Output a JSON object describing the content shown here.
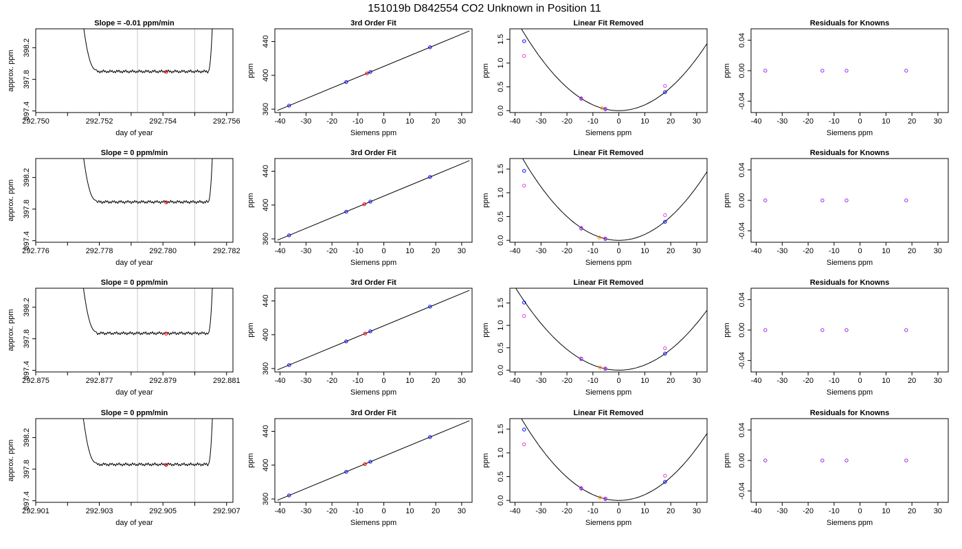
{
  "figure": {
    "title": "151019b     D842554   CO2 Unknown in Position  11",
    "colors": {
      "line": "#000000",
      "vline": "#c8c8c8",
      "blue": "#0000ff",
      "red": "#ff0000",
      "orange": "#ff8c00",
      "purple": "#a020f0",
      "magenta": "#e040e0"
    }
  },
  "chart_data": [
    {
      "id": "r1-trace",
      "type": "line",
      "title": "Slope =  -0.01  ppm/min",
      "xlabel": "day of year",
      "ylabel": "approx. ppm",
      "xlim": [
        292.75,
        292.7562
      ],
      "ylim": [
        397.38,
        398.44
      ],
      "xticks": [
        292.75,
        292.751,
        292.752,
        292.753,
        292.754,
        292.755,
        292.756
      ],
      "xtick_labels": [
        "292.750",
        "",
        "292.752",
        "",
        "292.754",
        "",
        "292.756"
      ],
      "yticks": [
        397.4,
        397.8,
        398.2
      ],
      "ytick_labels": [
        "397.4",
        "397.8",
        "398.2"
      ],
      "vlines": [
        292.7532,
        292.755
      ],
      "trace_start": 292.7514,
      "trace_end": 292.7556,
      "plateau": 397.9,
      "points": [
        {
          "x": 292.7541,
          "y": 397.895,
          "color": "red"
        }
      ]
    },
    {
      "id": "r1-fit",
      "type": "line",
      "title": "3rd Order Fit",
      "xlabel": "Siemens ppm",
      "ylabel": "ppm",
      "xlim": [
        -42,
        34
      ],
      "ylim": [
        356,
        455
      ],
      "xticks": [
        -40,
        -30,
        -20,
        -10,
        0,
        10,
        20,
        30
      ],
      "xtick_labels": [
        "-40",
        "-30",
        "-20",
        "-10",
        "0",
        "10",
        "20",
        "30"
      ],
      "yticks": [
        360,
        400,
        440
      ],
      "ytick_labels": [
        "360",
        "400",
        "440"
      ],
      "fit_line": [
        [
          -41,
          358.5
        ],
        [
          33,
          452.5
        ]
      ],
      "points": [
        {
          "x": -36.5,
          "y": 364.2,
          "color": "blue"
        },
        {
          "x": -14.5,
          "y": 392.1,
          "color": "blue"
        },
        {
          "x": -6.5,
          "y": 402.3,
          "color": "red"
        },
        {
          "x": -5.2,
          "y": 404.0,
          "color": "blue"
        },
        {
          "x": 17.8,
          "y": 433.2,
          "color": "blue"
        }
      ]
    },
    {
      "id": "r1-lin",
      "type": "scatter",
      "title": "Linear Fit Removed",
      "xlabel": "Siemens ppm",
      "ylabel": "ppm",
      "xlim": [
        -42,
        34
      ],
      "ylim": [
        -0.04,
        1.72
      ],
      "xticks": [
        -40,
        -30,
        -20,
        -10,
        0,
        10,
        20,
        30
      ],
      "xtick_labels": [
        "-40",
        "-30",
        "-20",
        "-10",
        "0",
        "10",
        "20",
        "30"
      ],
      "yticks": [
        0,
        0.5,
        1,
        1.5
      ],
      "ytick_labels": [
        "0.0",
        "0.5",
        "1.0",
        "1.5"
      ],
      "curve_coef": 0.00122,
      "points": [
        {
          "x": -36.5,
          "y": 1.46,
          "color": "blue"
        },
        {
          "x": -36.5,
          "y": 1.15,
          "color": "magenta"
        },
        {
          "x": -14.5,
          "y": 0.25,
          "color": "blue"
        },
        {
          "x": -14.5,
          "y": 0.26,
          "color": "magenta"
        },
        {
          "x": -6.5,
          "y": 0.05,
          "color": "orange"
        },
        {
          "x": -5.2,
          "y": 0.03,
          "color": "blue"
        },
        {
          "x": -5.2,
          "y": 0.04,
          "color": "magenta"
        },
        {
          "x": 17.8,
          "y": 0.39,
          "color": "blue"
        },
        {
          "x": 17.8,
          "y": 0.52,
          "color": "magenta"
        }
      ]
    },
    {
      "id": "r1-res",
      "type": "scatter",
      "title": "Residuals for Knowns",
      "xlabel": "Siemens ppm",
      "ylabel": "ppm",
      "xlim": [
        -42,
        34
      ],
      "ylim": [
        -0.055,
        0.055
      ],
      "xticks": [
        -40,
        -30,
        -20,
        -10,
        0,
        10,
        20,
        30
      ],
      "xtick_labels": [
        "-40",
        "-30",
        "-20",
        "-10",
        "0",
        "10",
        "20",
        "30"
      ],
      "yticks": [
        -0.04,
        0,
        0.04
      ],
      "ytick_labels": [
        "-0.04",
        "0.00",
        "0.04"
      ],
      "points": [
        {
          "x": -36.5,
          "y": 0,
          "color": "purple"
        },
        {
          "x": -14.5,
          "y": 0,
          "color": "purple"
        },
        {
          "x": -5.2,
          "y": 0,
          "color": "purple"
        },
        {
          "x": 17.8,
          "y": 0,
          "color": "purple"
        }
      ]
    },
    {
      "id": "r2-trace",
      "type": "line",
      "title": "Slope =  0  ppm/min",
      "xlabel": "day of year",
      "ylabel": "approx. ppm",
      "xlim": [
        292.776,
        292.7822
      ],
      "ylim": [
        397.38,
        398.44
      ],
      "xticks": [
        292.776,
        292.777,
        292.778,
        292.779,
        292.78,
        292.781,
        292.782
      ],
      "xtick_labels": [
        "292.776",
        "",
        "292.778",
        "",
        "292.780",
        "",
        "292.782"
      ],
      "yticks": [
        397.4,
        397.8,
        398.2
      ],
      "ytick_labels": [
        "397.4",
        "397.8",
        "398.2"
      ],
      "vlines": [
        292.7792,
        292.781
      ],
      "trace_start": 292.7774,
      "trace_end": 292.7816,
      "plateau": 397.89,
      "points": [
        {
          "x": 292.7801,
          "y": 397.885,
          "color": "red"
        }
      ]
    },
    {
      "id": "r2-fit",
      "type": "line",
      "title": "3rd Order Fit",
      "xlabel": "Siemens ppm",
      "ylabel": "ppm",
      "xlim": [
        -42,
        34
      ],
      "ylim": [
        356,
        455
      ],
      "xticks": [
        -40,
        -30,
        -20,
        -10,
        0,
        10,
        20,
        30
      ],
      "xtick_labels": [
        "-40",
        "-30",
        "-20",
        "-10",
        "0",
        "10",
        "20",
        "30"
      ],
      "yticks": [
        360,
        400,
        440
      ],
      "ytick_labels": [
        "360",
        "400",
        "440"
      ],
      "fit_line": [
        [
          -41,
          358.5
        ],
        [
          33,
          452.5
        ]
      ],
      "points": [
        {
          "x": -36.5,
          "y": 364.2,
          "color": "blue"
        },
        {
          "x": -14.5,
          "y": 392.1,
          "color": "blue"
        },
        {
          "x": -7.5,
          "y": 401.0,
          "color": "red"
        },
        {
          "x": -5.2,
          "y": 404.0,
          "color": "blue"
        },
        {
          "x": 17.8,
          "y": 433.2,
          "color": "blue"
        }
      ]
    },
    {
      "id": "r2-lin",
      "type": "scatter",
      "title": "Linear Fit Removed",
      "xlabel": "Siemens ppm",
      "ylabel": "ppm",
      "xlim": [
        -42,
        34
      ],
      "ylim": [
        -0.04,
        1.72
      ],
      "xticks": [
        -40,
        -30,
        -20,
        -10,
        0,
        10,
        20,
        30
      ],
      "xtick_labels": [
        "-40",
        "-30",
        "-20",
        "-10",
        "0",
        "10",
        "20",
        "30"
      ],
      "yticks": [
        0,
        0.5,
        1,
        1.5
      ],
      "ytick_labels": [
        "0.0",
        "0.5",
        "1.0",
        "1.5"
      ],
      "curve_coef": 0.00125,
      "points": [
        {
          "x": -36.5,
          "y": 1.46,
          "color": "blue"
        },
        {
          "x": -36.5,
          "y": 1.15,
          "color": "magenta"
        },
        {
          "x": -14.5,
          "y": 0.25,
          "color": "blue"
        },
        {
          "x": -14.5,
          "y": 0.26,
          "color": "magenta"
        },
        {
          "x": -7.5,
          "y": 0.06,
          "color": "orange"
        },
        {
          "x": -5.2,
          "y": 0.03,
          "color": "blue"
        },
        {
          "x": -5.2,
          "y": 0.04,
          "color": "magenta"
        },
        {
          "x": 17.8,
          "y": 0.39,
          "color": "blue"
        },
        {
          "x": 17.8,
          "y": 0.53,
          "color": "magenta"
        }
      ]
    },
    {
      "id": "r2-res",
      "type": "scatter",
      "title": "Residuals for Knowns",
      "xlabel": "Siemens ppm",
      "ylabel": "ppm",
      "xlim": [
        -42,
        34
      ],
      "ylim": [
        -0.055,
        0.055
      ],
      "xticks": [
        -40,
        -30,
        -20,
        -10,
        0,
        10,
        20,
        30
      ],
      "xtick_labels": [
        "-40",
        "-30",
        "-20",
        "-10",
        "0",
        "10",
        "20",
        "30"
      ],
      "yticks": [
        -0.04,
        0,
        0.04
      ],
      "ytick_labels": [
        "-0.04",
        "0.00",
        "0.04"
      ],
      "points": [
        {
          "x": -36.5,
          "y": 0,
          "color": "purple"
        },
        {
          "x": -14.5,
          "y": 0,
          "color": "purple"
        },
        {
          "x": -5.2,
          "y": 0,
          "color": "purple"
        },
        {
          "x": 17.8,
          "y": 0,
          "color": "purple"
        }
      ]
    },
    {
      "id": "r3-trace",
      "type": "line",
      "title": "Slope =  0  ppm/min",
      "xlabel": "day of year",
      "ylabel": "approx. ppm",
      "xlim": [
        292.875,
        292.8812
      ],
      "ylim": [
        397.38,
        398.44
      ],
      "xticks": [
        292.875,
        292.876,
        292.877,
        292.878,
        292.879,
        292.88,
        292.881
      ],
      "xtick_labels": [
        "292.875",
        "",
        "292.877",
        "",
        "292.879",
        "",
        "292.881"
      ],
      "yticks": [
        397.4,
        397.8,
        398.2
      ],
      "ytick_labels": [
        "397.4",
        "397.8",
        "398.2"
      ],
      "vlines": [
        292.8782,
        292.88
      ],
      "trace_start": 292.8764,
      "trace_end": 292.8806,
      "plateau": 397.87,
      "points": [
        {
          "x": 292.8791,
          "y": 397.865,
          "color": "red"
        }
      ]
    },
    {
      "id": "r3-fit",
      "type": "line",
      "title": "3rd Order Fit",
      "xlabel": "Siemens ppm",
      "ylabel": "ppm",
      "xlim": [
        -42,
        34
      ],
      "ylim": [
        356,
        455
      ],
      "xticks": [
        -40,
        -30,
        -20,
        -10,
        0,
        10,
        20,
        30
      ],
      "xtick_labels": [
        "-40",
        "-30",
        "-20",
        "-10",
        "0",
        "10",
        "20",
        "30"
      ],
      "yticks": [
        360,
        400,
        440
      ],
      "ytick_labels": [
        "360",
        "400",
        "440"
      ],
      "fit_line": [
        [
          -41,
          358.5
        ],
        [
          33,
          452.5
        ]
      ],
      "points": [
        {
          "x": -36.5,
          "y": 364.2,
          "color": "blue"
        },
        {
          "x": -14.5,
          "y": 392.1,
          "color": "blue"
        },
        {
          "x": -7.2,
          "y": 401.4,
          "color": "red"
        },
        {
          "x": -5.2,
          "y": 404.0,
          "color": "blue"
        },
        {
          "x": 17.8,
          "y": 433.2,
          "color": "blue"
        }
      ]
    },
    {
      "id": "r3-lin",
      "type": "scatter",
      "title": "Linear Fit Removed",
      "xlabel": "Siemens ppm",
      "ylabel": "ppm",
      "xlim": [
        -42,
        34
      ],
      "ylim": [
        -0.04,
        1.83
      ],
      "xticks": [
        -40,
        -30,
        -20,
        -10,
        0,
        10,
        20,
        30
      ],
      "xtick_labels": [
        "-40",
        "-30",
        "-20",
        "-10",
        "0",
        "10",
        "20",
        "30"
      ],
      "yticks": [
        0,
        0.5,
        1,
        1.5
      ],
      "ytick_labels": [
        "0.0",
        "0.5",
        "1.0",
        "1.5"
      ],
      "curve_coef": 0.00116,
      "points": [
        {
          "x": -36.5,
          "y": 1.51,
          "color": "blue"
        },
        {
          "x": -36.5,
          "y": 1.21,
          "color": "magenta"
        },
        {
          "x": -14.5,
          "y": 0.25,
          "color": "blue"
        },
        {
          "x": -14.5,
          "y": 0.26,
          "color": "magenta"
        },
        {
          "x": -7.2,
          "y": 0.06,
          "color": "orange"
        },
        {
          "x": -5.2,
          "y": 0.03,
          "color": "blue"
        },
        {
          "x": -5.2,
          "y": 0.04,
          "color": "magenta"
        },
        {
          "x": 17.8,
          "y": 0.37,
          "color": "blue"
        },
        {
          "x": 17.8,
          "y": 0.49,
          "color": "magenta"
        }
      ]
    },
    {
      "id": "r3-res",
      "type": "scatter",
      "title": "Residuals for Knowns",
      "xlabel": "Siemens ppm",
      "ylabel": "ppm",
      "xlim": [
        -42,
        34
      ],
      "ylim": [
        -0.055,
        0.055
      ],
      "xticks": [
        -40,
        -30,
        -20,
        -10,
        0,
        10,
        20,
        30
      ],
      "xtick_labels": [
        "-40",
        "-30",
        "-20",
        "-10",
        "0",
        "10",
        "20",
        "30"
      ],
      "yticks": [
        -0.04,
        0,
        0.04
      ],
      "ytick_labels": [
        "-0.04",
        "0.00",
        "0.04"
      ],
      "points": [
        {
          "x": -36.5,
          "y": 0,
          "color": "purple"
        },
        {
          "x": -14.5,
          "y": 0,
          "color": "purple"
        },
        {
          "x": -5.2,
          "y": 0,
          "color": "purple"
        },
        {
          "x": 17.8,
          "y": 0,
          "color": "purple"
        }
      ]
    },
    {
      "id": "r4-trace",
      "type": "line",
      "title": "Slope =  0  ppm/min",
      "xlabel": "day of year",
      "ylabel": "approx. ppm",
      "xlim": [
        292.901,
        292.9072
      ],
      "ylim": [
        397.38,
        398.44
      ],
      "xticks": [
        292.901,
        292.902,
        292.903,
        292.904,
        292.905,
        292.906,
        292.907
      ],
      "xtick_labels": [
        "292.901",
        "",
        "292.903",
        "",
        "292.905",
        "",
        "292.907"
      ],
      "yticks": [
        397.4,
        397.8,
        398.2
      ],
      "ytick_labels": [
        "397.4",
        "397.8",
        "398.2"
      ],
      "vlines": [
        292.9042,
        292.906
      ],
      "trace_start": 292.9024,
      "trace_end": 292.9066,
      "plateau": 397.86,
      "points": [
        {
          "x": 292.9051,
          "y": 397.855,
          "color": "red"
        }
      ]
    },
    {
      "id": "r4-fit",
      "type": "line",
      "title": "3rd Order Fit",
      "xlabel": "Siemens ppm",
      "ylabel": "ppm",
      "xlim": [
        -42,
        34
      ],
      "ylim": [
        356,
        455
      ],
      "xticks": [
        -40,
        -30,
        -20,
        -10,
        0,
        10,
        20,
        30
      ],
      "xtick_labels": [
        "-40",
        "-30",
        "-20",
        "-10",
        "0",
        "10",
        "20",
        "30"
      ],
      "yticks": [
        360,
        400,
        440
      ],
      "ytick_labels": [
        "360",
        "400",
        "440"
      ],
      "fit_line": [
        [
          -41,
          358.5
        ],
        [
          33,
          452.5
        ]
      ],
      "points": [
        {
          "x": -36.5,
          "y": 364.2,
          "color": "blue"
        },
        {
          "x": -14.5,
          "y": 392.1,
          "color": "blue"
        },
        {
          "x": -7.3,
          "y": 401.2,
          "color": "red"
        },
        {
          "x": -5.2,
          "y": 404.0,
          "color": "blue"
        },
        {
          "x": 17.8,
          "y": 433.2,
          "color": "blue"
        }
      ]
    },
    {
      "id": "r4-lin",
      "type": "scatter",
      "title": "Linear Fit Removed",
      "xlabel": "Siemens ppm",
      "ylabel": "ppm",
      "xlim": [
        -42,
        34
      ],
      "ylim": [
        -0.04,
        1.72
      ],
      "xticks": [
        -40,
        -30,
        -20,
        -10,
        0,
        10,
        20,
        30
      ],
      "xtick_labels": [
        "-40",
        "-30",
        "-20",
        "-10",
        "0",
        "10",
        "20",
        "30"
      ],
      "yticks": [
        0,
        0.5,
        1,
        1.5
      ],
      "ytick_labels": [
        "0.0",
        "0.5",
        "1.0",
        "1.5"
      ],
      "curve_coef": 0.00122,
      "points": [
        {
          "x": -36.5,
          "y": 1.49,
          "color": "blue"
        },
        {
          "x": -36.5,
          "y": 1.18,
          "color": "magenta"
        },
        {
          "x": -14.5,
          "y": 0.25,
          "color": "blue"
        },
        {
          "x": -14.5,
          "y": 0.26,
          "color": "magenta"
        },
        {
          "x": -7.3,
          "y": 0.06,
          "color": "orange"
        },
        {
          "x": -5.2,
          "y": 0.03,
          "color": "blue"
        },
        {
          "x": -5.2,
          "y": 0.04,
          "color": "magenta"
        },
        {
          "x": 17.8,
          "y": 0.39,
          "color": "blue"
        },
        {
          "x": 17.8,
          "y": 0.52,
          "color": "magenta"
        }
      ]
    },
    {
      "id": "r4-res",
      "type": "scatter",
      "title": "Residuals for Knowns",
      "xlabel": "Siemens ppm",
      "ylabel": "ppm",
      "xlim": [
        -42,
        34
      ],
      "ylim": [
        -0.055,
        0.055
      ],
      "xticks": [
        -40,
        -30,
        -20,
        -10,
        0,
        10,
        20,
        30
      ],
      "xtick_labels": [
        "-40",
        "-30",
        "-20",
        "-10",
        "0",
        "10",
        "20",
        "30"
      ],
      "yticks": [
        -0.04,
        0,
        0.04
      ],
      "ytick_labels": [
        "-0.04",
        "0.00",
        "0.04"
      ],
      "points": [
        {
          "x": -36.5,
          "y": 0,
          "color": "purple"
        },
        {
          "x": -14.5,
          "y": 0,
          "color": "purple"
        },
        {
          "x": -5.2,
          "y": 0,
          "color": "purple"
        },
        {
          "x": 17.8,
          "y": 0,
          "color": "purple"
        }
      ]
    }
  ]
}
